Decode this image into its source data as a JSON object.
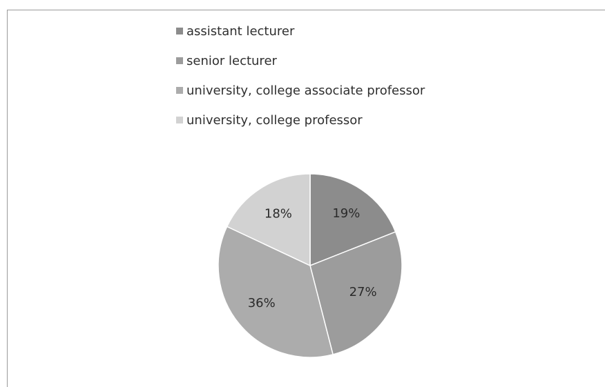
{
  "chart_data": {
    "type": "pie",
    "title": "",
    "categories": [
      "assistant lecturer",
      "senior lecturer",
      "university, college associate professor",
      "university, college professor"
    ],
    "values": [
      19,
      27,
      36,
      18
    ],
    "value_labels": [
      "19%",
      "27%",
      "36%",
      "18%"
    ],
    "colors": [
      "#8c8c8c",
      "#9c9c9c",
      "#acacac",
      "#d2d2d2"
    ],
    "legend_position": "top",
    "start_angle": "12 o'clock",
    "direction": "clockwise"
  }
}
